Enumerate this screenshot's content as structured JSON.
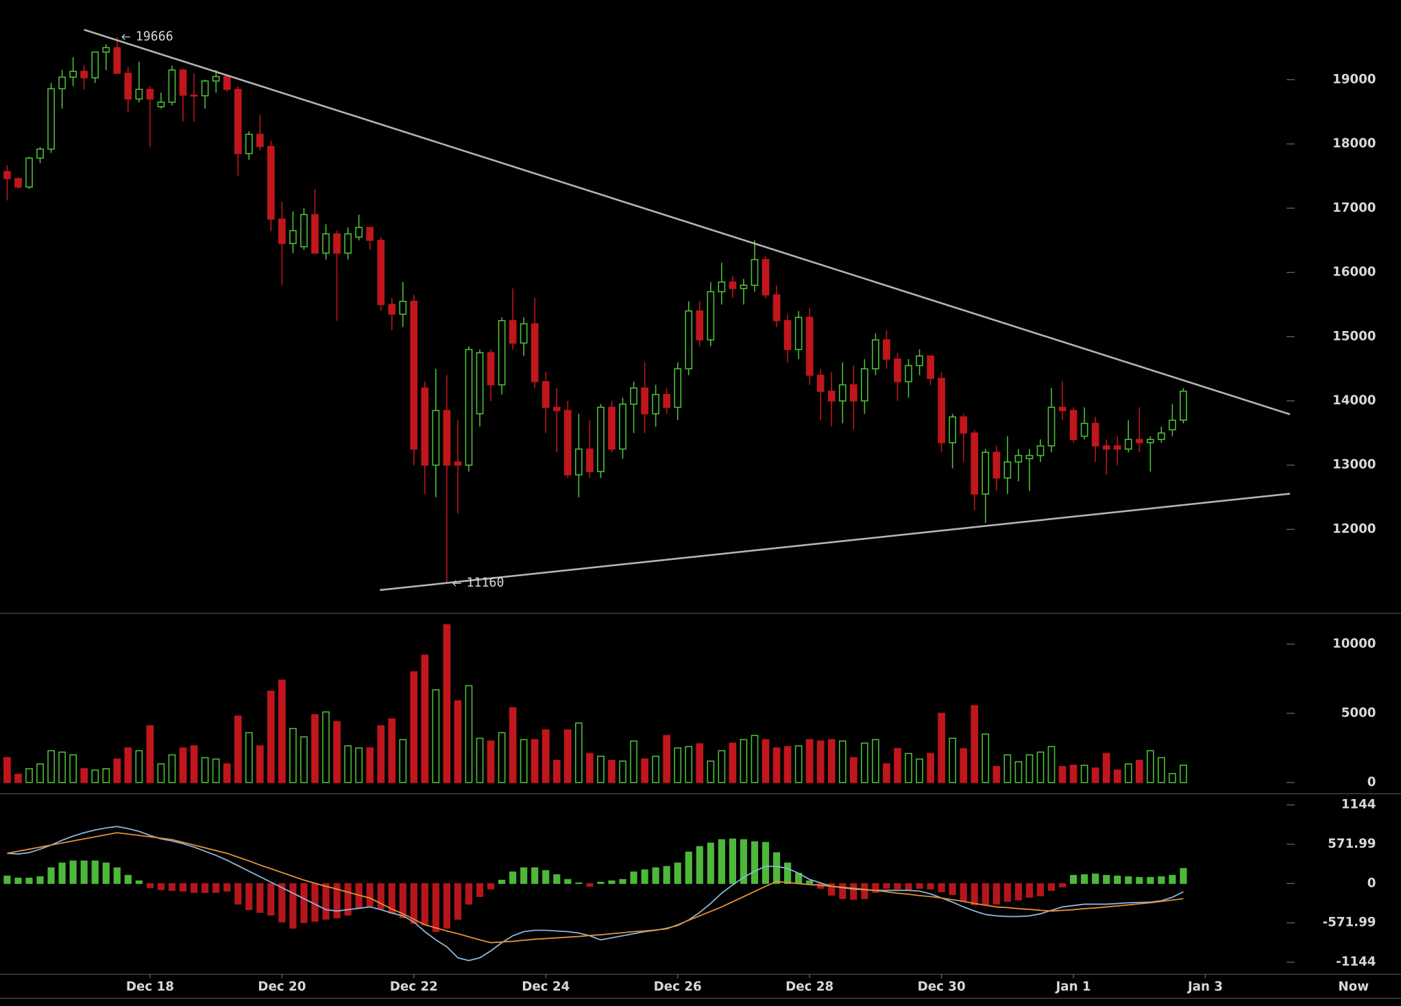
{
  "chart_data": [
    {
      "type": "candlestick",
      "xlim": [
        -0.65,
        126.8
      ],
      "xticks": [
        {
          "value": 13,
          "label": "Dec 18"
        },
        {
          "value": 25,
          "label": "Dec 20"
        },
        {
          "value": 37,
          "label": "Dec 22"
        },
        {
          "value": 49,
          "label": "Dec 24"
        },
        {
          "value": 61,
          "label": "Dec 26"
        },
        {
          "value": 73,
          "label": "Dec 28"
        },
        {
          "value": 85,
          "label": "Dec 30"
        },
        {
          "value": 97,
          "label": "Jan 1"
        },
        {
          "value": 109,
          "label": "Jan 3"
        }
      ],
      "x_end_label": "Now",
      "ylim": [
        10700,
        20240
      ],
      "yticks": [
        12000,
        13000,
        14000,
        15000,
        16000,
        17000,
        18000,
        19000
      ],
      "up_color": "#4fc13a",
      "down_color": "#c0161c",
      "open": [
        17570,
        17460,
        17330,
        17780,
        17920,
        18860,
        19040,
        19130,
        19030,
        19430,
        19500,
        19100,
        18700,
        18850,
        18580,
        18650,
        19150,
        18760,
        18750,
        18980,
        19050,
        18850,
        17850,
        18150,
        17960,
        16830,
        16450,
        16400,
        16900,
        16300,
        16600,
        16300,
        16550,
        16700,
        16500,
        15500,
        15350,
        15550,
        14200,
        13000,
        13850,
        13050,
        13000,
        13800,
        14750,
        14250,
        15250,
        14900,
        15200,
        14300,
        13900,
        13850,
        12850,
        13250,
        12900,
        13900,
        13250,
        13950,
        14200,
        13800,
        14100,
        13900,
        14500,
        15400,
        14950,
        15700,
        15850,
        15750,
        15800,
        16200,
        15650,
        15250,
        14800,
        15300,
        14400,
        14150,
        14000,
        14250,
        14000,
        14500,
        14950,
        14650,
        14300,
        14550,
        14700,
        14350,
        13350,
        13750,
        13500,
        12550,
        13200,
        12800,
        13050,
        13100,
        13150,
        13300,
        13900,
        13850,
        13450,
        13650,
        13300,
        13300,
        13250,
        13400,
        13350,
        13400,
        13550,
        13700
      ],
      "high": [
        17670,
        17480,
        17800,
        17950,
        18950,
        19150,
        19350,
        19230,
        19430,
        19550,
        19666,
        19200,
        19280,
        18900,
        18800,
        19220,
        19170,
        19100,
        19000,
        19150,
        19060,
        18900,
        18200,
        18450,
        18050,
        17100,
        16950,
        17000,
        17300,
        16750,
        16650,
        16700,
        16900,
        16700,
        16550,
        15600,
        15850,
        15650,
        14300,
        14500,
        14400,
        13700,
        14850,
        14800,
        14800,
        15300,
        15750,
        15300,
        15600,
        14450,
        14200,
        14000,
        13800,
        13700,
        13950,
        14000,
        14050,
        14300,
        14600,
        14250,
        14200,
        14600,
        15550,
        15550,
        15850,
        16150,
        15950,
        15900,
        16500,
        16250,
        15800,
        15350,
        15400,
        15450,
        14500,
        14450,
        14600,
        14550,
        14650,
        15050,
        15100,
        14750,
        14650,
        14800,
        14700,
        14450,
        13800,
        13800,
        13550,
        13250,
        13300,
        13450,
        13250,
        13250,
        13400,
        14200,
        14300,
        13900,
        13900,
        13750,
        13400,
        13450,
        13700,
        13900,
        13450,
        13600,
        13950,
        14200
      ],
      "low": [
        17120,
        17300,
        17300,
        17700,
        17860,
        18550,
        18900,
        18850,
        18950,
        19150,
        19100,
        18500,
        18650,
        17950,
        18550,
        18600,
        18350,
        18350,
        18550,
        18800,
        18810,
        17500,
        17750,
        17900,
        16640,
        15800,
        16300,
        16350,
        16300,
        16200,
        15250,
        16200,
        16500,
        16350,
        15400,
        15100,
        15150,
        13000,
        12550,
        12500,
        11160,
        12250,
        12900,
        13600,
        14000,
        14100,
        14800,
        14700,
        14200,
        13500,
        13200,
        12800,
        12500,
        12800,
        12800,
        13200,
        13100,
        13500,
        13500,
        13600,
        13800,
        13700,
        14400,
        14850,
        14850,
        15500,
        15600,
        15500,
        15700,
        15600,
        15150,
        14600,
        14650,
        14250,
        13700,
        13600,
        13650,
        13550,
        13800,
        14400,
        14500,
        14000,
        14050,
        14400,
        14250,
        13200,
        12950,
        13050,
        12300,
        12100,
        12600,
        12550,
        12750,
        12600,
        13050,
        13200,
        13700,
        13350,
        13400,
        13050,
        12850,
        13000,
        13200,
        13200,
        12900,
        13350,
        13450,
        13650
      ],
      "close": [
        17460,
        17330,
        17780,
        17920,
        18860,
        19040,
        19130,
        19030,
        19430,
        19500,
        19100,
        18700,
        18850,
        18700,
        18650,
        19150,
        18760,
        18750,
        18980,
        19050,
        18850,
        17850,
        18150,
        17960,
        16830,
        16450,
        16650,
        16900,
        16300,
        16600,
        16300,
        16600,
        16700,
        16500,
        15500,
        15350,
        15550,
        13250,
        13000,
        13850,
        13000,
        13000,
        14800,
        14750,
        14250,
        15250,
        14900,
        15200,
        14300,
        13900,
        13850,
        12850,
        13250,
        12900,
        13900,
        13250,
        13950,
        14200,
        13800,
        14100,
        13900,
        14500,
        15400,
        14950,
        15700,
        15850,
        15750,
        15800,
        16200,
        15650,
        15250,
        14800,
        15300,
        14400,
        14150,
        14000,
        14250,
        14000,
        14500,
        14950,
        14650,
        14300,
        14550,
        14700,
        14350,
        13350,
        13750,
        13500,
        12550,
        13200,
        12800,
        13050,
        13150,
        13150,
        13300,
        13900,
        13850,
        13400,
        13650,
        13300,
        13250,
        13250,
        13400,
        13350,
        13400,
        13500,
        13700,
        14150
      ],
      "trendlines": [
        {
          "x": [
            7,
            116.7
          ],
          "y": [
            19778,
            13791
          ]
        },
        {
          "x": [
            33.9,
            116.7
          ],
          "y": [
            11055,
            12555
          ]
        }
      ],
      "trendline_color": "#b4b4b4",
      "annotations": [
        {
          "x": 10.3,
          "value": 19666
        },
        {
          "x": 40.4,
          "value": 11160
        }
      ]
    },
    {
      "type": "bar",
      "ylim": [
        -650,
        12130
      ],
      "yticks": [
        0,
        5000,
        10000
      ],
      "values": [
        1800,
        600,
        1000,
        1350,
        2300,
        2200,
        2000,
        1000,
        900,
        1000,
        1700,
        2500,
        2300,
        4100,
        1350,
        2000,
        2500,
        2650,
        1800,
        1700,
        1350,
        4800,
        3600,
        2650,
        6600,
        7400,
        3900,
        3300,
        4900,
        5100,
        4400,
        2650,
        2500,
        2500,
        4100,
        4600,
        3100,
        8000,
        9200,
        6700,
        11400,
        5900,
        7000,
        3200,
        3000,
        3600,
        5400,
        3100,
        3100,
        3800,
        1600,
        3800,
        4300,
        2100,
        1900,
        1600,
        1550,
        3000,
        1700,
        1900,
        3400,
        2500,
        2600,
        2800,
        1550,
        2300,
        2850,
        3100,
        3400,
        3100,
        2500,
        2600,
        2650,
        3100,
        3000,
        3100,
        3000,
        1800,
        2850,
        3100,
        1350,
        2450,
        2100,
        1700,
        2100,
        5000,
        3200,
        2450,
        5550,
        3500,
        1150,
        2000,
        1500,
        2000,
        2200,
        2600,
        1150,
        1250,
        1250,
        1050,
        2100,
        900,
        1350,
        1600,
        2300,
        1800,
        650,
        1250
      ]
    },
    {
      "type": "macd",
      "ylim": [
        -1313,
        1313
      ],
      "yticks": [
        1144,
        571.99,
        0,
        -571.99,
        -1144
      ],
      "hist_colors": [
        "#4db83a",
        "#b5161b"
      ],
      "histogram": [
        110,
        80,
        80,
        100,
        230,
        300,
        330,
        330,
        330,
        300,
        230,
        120,
        40,
        -60,
        -90,
        -100,
        -110,
        -130,
        -130,
        -130,
        -110,
        -300,
        -380,
        -420,
        -460,
        -560,
        -650,
        -570,
        -550,
        -520,
        -500,
        -460,
        -350,
        -330,
        -370,
        -430,
        -500,
        -580,
        -600,
        -700,
        -650,
        -520,
        -300,
        -190,
        -80,
        50,
        170,
        230,
        230,
        190,
        130,
        60,
        10,
        -40,
        20,
        40,
        60,
        170,
        200,
        230,
        250,
        300,
        460,
        540,
        590,
        640,
        650,
        640,
        610,
        600,
        450,
        300,
        150,
        40,
        -70,
        -170,
        -220,
        -230,
        -220,
        -130,
        -70,
        -80,
        -100,
        -70,
        -80,
        -120,
        -160,
        -250,
        -310,
        -310,
        -300,
        -260,
        -240,
        -200,
        -180,
        -100,
        -50,
        120,
        130,
        140,
        120,
        110,
        100,
        90,
        90,
        100,
        120,
        220
      ],
      "series": [
        {
          "color": "#8fb4d8",
          "values": [
            440,
            430,
            450,
            500,
            560,
            630,
            690,
            740,
            780,
            810,
            830,
            800,
            760,
            700,
            650,
            620,
            580,
            530,
            470,
            410,
            340,
            260,
            180,
            100,
            20,
            -60,
            -140,
            -220,
            -300,
            -380,
            -400,
            -380,
            -360,
            -340,
            -380,
            -430,
            -470,
            -560,
            -700,
            -820,
            -920,
            -1080,
            -1120,
            -1080,
            -980,
            -860,
            -760,
            -700,
            -680,
            -680,
            -690,
            -700,
            -720,
            -760,
            -820,
            -790,
            -760,
            -730,
            -700,
            -680,
            -650,
            -610,
            -530,
            -420,
            -290,
            -140,
            -20,
            90,
            180,
            250,
            250,
            220,
            150,
            60,
            10,
            -40,
            -60,
            -80,
            -90,
            -100,
            -100,
            -100,
            -100,
            -110,
            -150,
            -210,
            -270,
            -340,
            -400,
            -450,
            -470,
            -480,
            -480,
            -470,
            -440,
            -390,
            -340,
            -320,
            -300,
            -300,
            -300,
            -290,
            -280,
            -275,
            -270,
            -250,
            -200,
            -120
          ]
        },
        {
          "color": "#e0913a",
          "values": [
            440,
            470,
            500,
            530,
            560,
            590,
            620,
            650,
            680,
            710,
            740,
            720,
            700,
            680,
            660,
            640,
            600,
            560,
            520,
            480,
            440,
            385,
            330,
            270,
            215,
            160,
            105,
            50,
            5,
            -40,
            -80,
            -125,
            -170,
            -210,
            -290,
            -370,
            -440,
            -520,
            -600,
            -645,
            -690,
            -730,
            -775,
            -820,
            -860,
            -850,
            -840,
            -825,
            -810,
            -800,
            -790,
            -780,
            -770,
            -755,
            -745,
            -730,
            -715,
            -700,
            -690,
            -675,
            -660,
            -600,
            -535,
            -470,
            -405,
            -340,
            -265,
            -190,
            -115,
            -40,
            30,
            15,
            0,
            -15,
            -25,
            -40,
            -55,
            -70,
            -85,
            -100,
            -120,
            -140,
            -155,
            -175,
            -190,
            -210,
            -235,
            -260,
            -290,
            -315,
            -340,
            -350,
            -365,
            -375,
            -390,
            -400,
            -390,
            -380,
            -365,
            -355,
            -340,
            -325,
            -310,
            -295,
            -280,
            -260,
            -240,
            -220
          ]
        }
      ]
    }
  ]
}
